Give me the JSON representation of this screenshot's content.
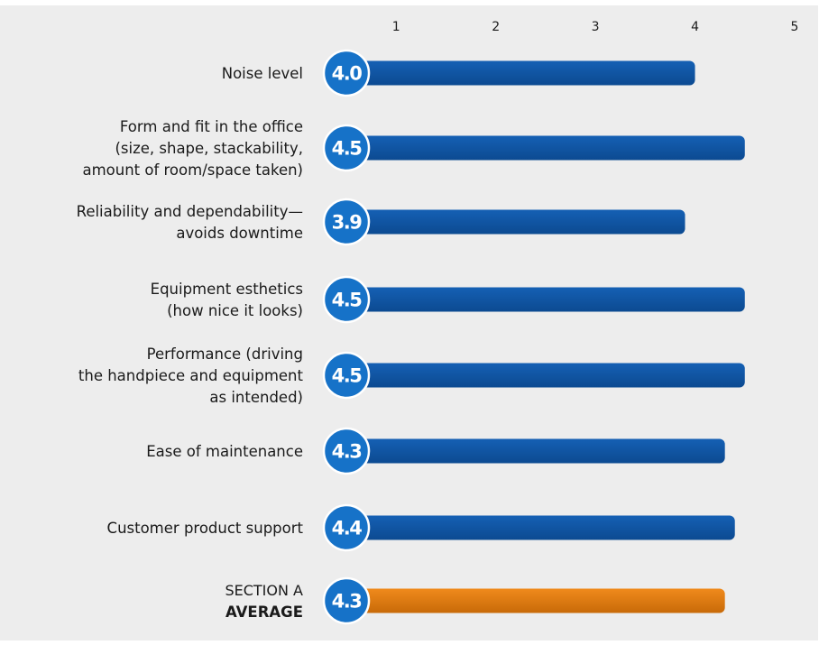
{
  "chart_data": {
    "type": "bar",
    "orientation": "horizontal",
    "x_ticks": [
      "1",
      "2",
      "3",
      "4",
      "5"
    ],
    "xlim": [
      0.5,
      5
    ],
    "categories": [
      [
        "Noise level"
      ],
      [
        "Form and fit in the office",
        "(size, shape, stackability,",
        "amount of room/space taken)"
      ],
      [
        "Reliability and dependability—",
        "avoids downtime"
      ],
      [
        "Equipment esthetics",
        "(how nice it looks)"
      ],
      [
        "Performance (driving",
        "the handpiece and equipment",
        "as intended)"
      ],
      [
        "Ease of maintenance"
      ],
      [
        "Customer product support"
      ],
      [
        "SECTION A",
        "AVERAGE"
      ]
    ],
    "values": [
      4.0,
      4.5,
      3.9,
      4.5,
      4.5,
      4.3,
      4.4,
      4.3
    ],
    "value_labels": [
      "4.0",
      "4.5",
      "3.9",
      "4.5",
      "4.5",
      "4.3",
      "4.4",
      "4.3"
    ],
    "highlight_index": 7,
    "colors": {
      "bar": "#1560b4",
      "bar_dark": "#0c4a91",
      "highlight_bar": "#f08a1c",
      "highlight_dark": "#c86a08",
      "badge": "#1672c8",
      "badge_border": "#ffffff",
      "panel": "#ededed"
    },
    "grid": false,
    "legend": "none"
  }
}
